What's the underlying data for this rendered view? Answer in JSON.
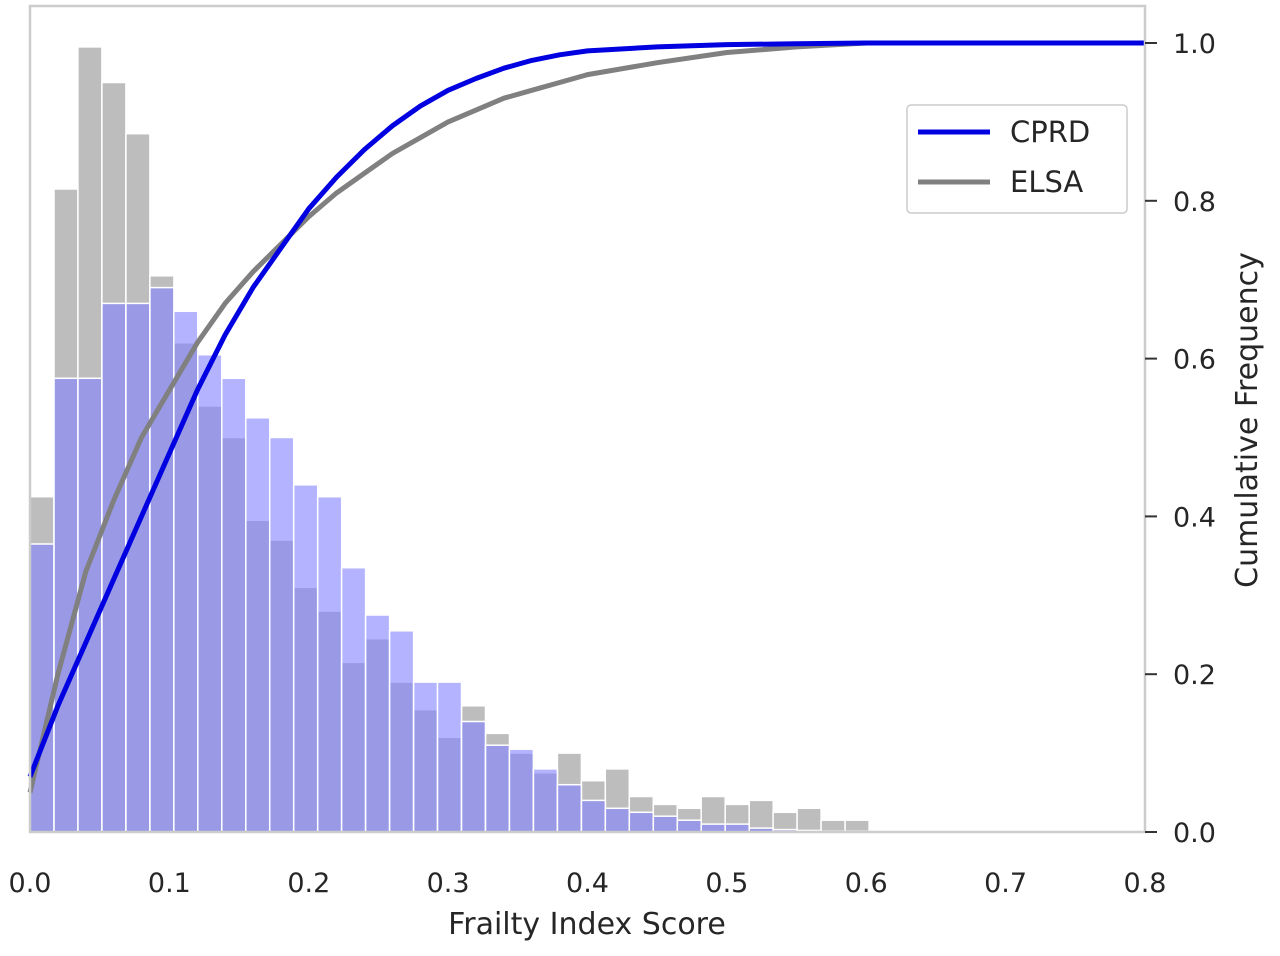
{
  "chart_data": {
    "type": "bar",
    "xlabel": "Frailty Index Score",
    "ylabel": "Cumulative Frequency",
    "xlim": [
      0.0,
      0.8
    ],
    "ylim_right": [
      0.0,
      1.05
    ],
    "hist_scale_max": 1.0,
    "grid": false,
    "legend_position": "top-right",
    "x_ticks": [
      "0.0",
      "0.1",
      "0.2",
      "0.3",
      "0.4",
      "0.5",
      "0.6",
      "0.7",
      "0.8"
    ],
    "y_ticks_right": [
      "0.0",
      "0.2",
      "0.4",
      "0.6",
      "0.8",
      "1.0"
    ],
    "bin_width": 0.0172,
    "bin_start": 0.0,
    "colors": {
      "cprd_bar": "#b3b3ff",
      "elsa_bar": "#bdbdbd",
      "cprd_line": "#0000e0",
      "elsa_line": "#808080",
      "overlap_bar": "#9999c8",
      "frame": "#cccccc"
    },
    "histograms": [
      {
        "name": "ELSA",
        "values": [
          0.425,
          0.815,
          0.995,
          0.95,
          0.885,
          0.705,
          0.62,
          0.54,
          0.5,
          0.395,
          0.37,
          0.31,
          0.28,
          0.215,
          0.245,
          0.19,
          0.155,
          0.12,
          0.16,
          0.125,
          0.1,
          0.075,
          0.1,
          0.065,
          0.08,
          0.045,
          0.035,
          0.03,
          0.045,
          0.035,
          0.04,
          0.025,
          0.03,
          0.015,
          0.015,
          0.0
        ]
      },
      {
        "name": "CPRD",
        "values": [
          0.365,
          0.575,
          0.575,
          0.67,
          0.67,
          0.69,
          0.66,
          0.605,
          0.575,
          0.525,
          0.5,
          0.44,
          0.425,
          0.335,
          0.275,
          0.255,
          0.19,
          0.19,
          0.14,
          0.11,
          0.105,
          0.08,
          0.06,
          0.04,
          0.03,
          0.025,
          0.02,
          0.015,
          0.01,
          0.01,
          0.005,
          0.003,
          0.002,
          0.001,
          0.001,
          0.0
        ]
      }
    ],
    "series": [
      {
        "name": "CPRD",
        "x": [
          0.0,
          0.02,
          0.04,
          0.06,
          0.08,
          0.1,
          0.12,
          0.14,
          0.16,
          0.18,
          0.2,
          0.22,
          0.24,
          0.26,
          0.28,
          0.3,
          0.32,
          0.34,
          0.36,
          0.38,
          0.4,
          0.45,
          0.5,
          0.55,
          0.6,
          0.7,
          0.8
        ],
        "y": [
          0.07,
          0.16,
          0.24,
          0.32,
          0.4,
          0.48,
          0.56,
          0.63,
          0.69,
          0.74,
          0.79,
          0.83,
          0.865,
          0.895,
          0.92,
          0.94,
          0.955,
          0.968,
          0.978,
          0.985,
          0.99,
          0.995,
          0.998,
          0.999,
          1.0,
          1.0,
          1.0
        ]
      },
      {
        "name": "ELSA",
        "x": [
          0.0,
          0.02,
          0.04,
          0.06,
          0.08,
          0.1,
          0.12,
          0.14,
          0.16,
          0.18,
          0.2,
          0.22,
          0.24,
          0.26,
          0.28,
          0.3,
          0.32,
          0.34,
          0.36,
          0.38,
          0.4,
          0.45,
          0.5,
          0.55,
          0.6,
          0.7,
          0.8
        ],
        "y": [
          0.05,
          0.2,
          0.33,
          0.42,
          0.5,
          0.56,
          0.62,
          0.67,
          0.71,
          0.745,
          0.78,
          0.81,
          0.835,
          0.86,
          0.88,
          0.9,
          0.915,
          0.93,
          0.94,
          0.95,
          0.96,
          0.975,
          0.988,
          0.995,
          1.0,
          1.0,
          1.0
        ]
      }
    ],
    "legend": [
      {
        "label": "CPRD",
        "color": "#0000e0"
      },
      {
        "label": "ELSA",
        "color": "#808080"
      }
    ]
  }
}
